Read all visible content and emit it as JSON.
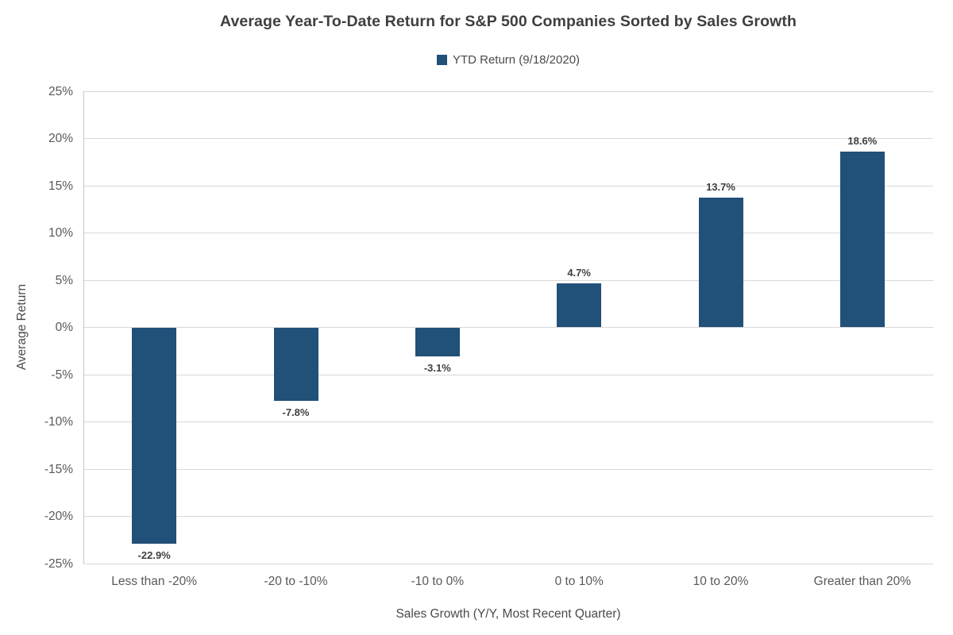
{
  "chart_data": {
    "type": "bar",
    "title": "Average Year-To-Date Return for S&P 500 Companies Sorted by Sales Growth",
    "legend": {
      "position": "top",
      "entries": [
        "YTD Return (9/18/2020)"
      ]
    },
    "categories": [
      "Less than -20%",
      "-20 to -10%",
      "-10 to 0%",
      "0 to 10%",
      "10 to 20%",
      "Greater than 20%"
    ],
    "series": [
      {
        "name": "YTD Return (9/18/2020)",
        "values": [
          -22.9,
          -7.8,
          -3.1,
          4.7,
          13.7,
          18.6
        ]
      }
    ],
    "data_labels": [
      "-22.9%",
      "-7.8%",
      "-3.1%",
      "4.7%",
      "13.7%",
      "18.6%"
    ],
    "xlabel": "Sales Growth (Y/Y, Most Recent Quarter)",
    "ylabel": "Average Return",
    "ylim": [
      -25,
      25
    ],
    "ytick_step": 5,
    "ytick_labels": [
      "25%",
      "20%",
      "15%",
      "10%",
      "5%",
      "0%",
      "-5%",
      "-10%",
      "-15%",
      "-20%",
      "-25%"
    ],
    "grid": true,
    "colors": {
      "bar": "#215078",
      "gridline": "#d9d9d9",
      "axis_line": "#c6c6c6",
      "title_text": "#3f3f3f",
      "tick_text": "#595959",
      "data_label_text": "#404040"
    }
  }
}
